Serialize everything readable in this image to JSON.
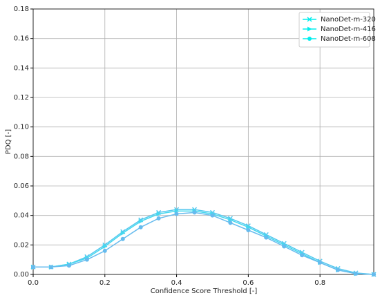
{
  "chart_data": {
    "type": "line",
    "x_label": "Confidence Score Threshold [-]",
    "y_label": "PDQ [-]",
    "x": [
      0,
      0.05,
      0.1,
      0.15,
      0.2,
      0.25,
      0.3,
      0.35,
      0.4,
      0.45,
      0.5,
      0.55,
      0.6,
      0.65,
      0.7,
      0.75,
      0.8,
      0.85,
      0.9,
      0.95
    ],
    "series": [
      {
        "name": "NanoDet-m-320",
        "color": "#55c8ee",
        "marker": "x",
        "values": [
          0.005,
          0.005,
          0.007,
          0.012,
          0.02,
          0.029,
          0.037,
          0.042,
          0.044,
          0.044,
          0.042,
          0.038,
          0.033,
          0.027,
          0.021,
          0.015,
          0.009,
          0.004,
          0.001,
          0
        ]
      },
      {
        "name": "NanoDet-m-416",
        "color": "#44d8ee",
        "marker": "triangle",
        "values": [
          0.005,
          0.005,
          0.007,
          0.011,
          0.019,
          0.028,
          0.036,
          0.041,
          0.043,
          0.043,
          0.041,
          0.037,
          0.032,
          0.026,
          0.02,
          0.014,
          0.008,
          0.003,
          0.0005,
          0
        ]
      },
      {
        "name": "NanoDet-m-608",
        "color": "#66bbee",
        "marker": "circle",
        "values": [
          0.005,
          0.005,
          0.006,
          0.01,
          0.016,
          0.024,
          0.032,
          0.038,
          0.041,
          0.042,
          0.04,
          0.035,
          0.03,
          0.025,
          0.019,
          0.013,
          0.008,
          0.003,
          0.0005,
          0
        ]
      }
    ],
    "legend_colors": [
      "#00eeee",
      "#00eeee",
      "#00eeee"
    ],
    "xlim": [
      0,
      0.95
    ],
    "xticks": [
      {
        "value": 0,
        "label": "0.0"
      },
      0.2,
      0.4,
      0.6,
      0.8
    ],
    "ylim": [
      0,
      0.18
    ],
    "yticks": [
      {
        "value": 0,
        "label": "0.00"
      },
      0.02,
      0.04,
      0.06,
      0.08,
      {
        "value": 0.1,
        "label": "0.10"
      },
      0.12,
      0.14,
      0.16,
      0.18
    ],
    "grid": true,
    "legend": "upper right"
  }
}
